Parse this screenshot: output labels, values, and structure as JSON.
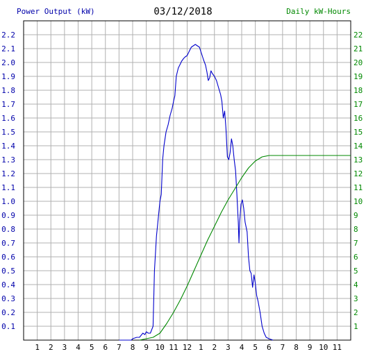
{
  "header": {
    "left_label": "Power Output (kW)",
    "date": "03/12/2018",
    "right_label": "Daily kW-Hours"
  },
  "chart_data": {
    "type": "line",
    "title": "03/12/2018",
    "grid": true,
    "legend": "none",
    "x_ticks": [
      "1",
      "2",
      "3",
      "4",
      "5",
      "6",
      "7",
      "8",
      "9",
      "10",
      "11",
      "12",
      "1",
      "2",
      "3",
      "4",
      "5",
      "6",
      "7",
      "8",
      "9",
      "10",
      "11"
    ],
    "x_range": [
      0,
      24
    ],
    "y_left": {
      "label": "Power Output (kW)",
      "range": [
        0,
        2.3
      ],
      "ticks": [
        "0.1",
        "0.2",
        "0.3",
        "0.4",
        "0.5",
        "0.6",
        "0.7",
        "0.8",
        "0.9",
        "1.0",
        "1.1",
        "1.2",
        "1.3",
        "1.4",
        "1.5",
        "1.6",
        "1.7",
        "1.8",
        "1.9",
        "2.0",
        "2.1",
        "2.2"
      ]
    },
    "y_right": {
      "label": "Daily kW-Hours",
      "range": [
        0,
        23
      ],
      "ticks": [
        "1",
        "2",
        "3",
        "4",
        "5",
        "6",
        "7",
        "8",
        "9",
        "10",
        "11",
        "12",
        "13",
        "14",
        "15",
        "16",
        "17",
        "18",
        "19",
        "20",
        "21",
        "22"
      ]
    },
    "colors": {
      "power": "#0000cc",
      "energy": "#008800",
      "grid": "#b0b0b0",
      "left_axis": "#0000aa",
      "right_axis": "#008800"
    },
    "series": [
      {
        "name": "Power Output (kW)",
        "axis": "left",
        "points": [
          [
            7.0,
            0
          ],
          [
            7.9,
            0
          ],
          [
            8.0,
            0.01
          ],
          [
            8.3,
            0.02
          ],
          [
            8.5,
            0.02
          ],
          [
            8.75,
            0.05
          ],
          [
            8.9,
            0.04
          ],
          [
            9.0,
            0.06
          ],
          [
            9.15,
            0.05
          ],
          [
            9.3,
            0.05
          ],
          [
            9.5,
            0.1
          ],
          [
            9.6,
            0.5
          ],
          [
            9.75,
            0.75
          ],
          [
            9.9,
            0.9
          ],
          [
            10.0,
            1.0
          ],
          [
            10.1,
            1.05
          ],
          [
            10.2,
            1.3
          ],
          [
            10.3,
            1.4
          ],
          [
            10.45,
            1.5
          ],
          [
            10.6,
            1.55
          ],
          [
            10.75,
            1.62
          ],
          [
            10.9,
            1.67
          ],
          [
            11.0,
            1.72
          ],
          [
            11.1,
            1.76
          ],
          [
            11.2,
            1.9
          ],
          [
            11.35,
            1.96
          ],
          [
            11.5,
            1.99
          ],
          [
            11.6,
            2.01
          ],
          [
            11.75,
            2.03
          ],
          [
            11.85,
            2.04
          ],
          [
            12.0,
            2.05
          ],
          [
            12.15,
            2.08
          ],
          [
            12.3,
            2.11
          ],
          [
            12.45,
            2.12
          ],
          [
            12.6,
            2.13
          ],
          [
            12.75,
            2.12
          ],
          [
            12.9,
            2.11
          ],
          [
            13.0,
            2.08
          ],
          [
            13.1,
            2.05
          ],
          [
            13.2,
            2.02
          ],
          [
            13.35,
            1.98
          ],
          [
            13.45,
            1.93
          ],
          [
            13.55,
            1.87
          ],
          [
            13.65,
            1.89
          ],
          [
            13.75,
            1.94
          ],
          [
            13.85,
            1.92
          ],
          [
            14.0,
            1.9
          ],
          [
            14.15,
            1.87
          ],
          [
            14.3,
            1.82
          ],
          [
            14.45,
            1.77
          ],
          [
            14.55,
            1.72
          ],
          [
            14.65,
            1.6
          ],
          [
            14.75,
            1.65
          ],
          [
            14.85,
            1.52
          ],
          [
            14.95,
            1.32
          ],
          [
            15.05,
            1.3
          ],
          [
            15.15,
            1.35
          ],
          [
            15.25,
            1.45
          ],
          [
            15.35,
            1.4
          ],
          [
            15.45,
            1.3
          ],
          [
            15.55,
            1.22
          ],
          [
            15.65,
            1.05
          ],
          [
            15.7,
            0.95
          ],
          [
            15.75,
            0.85
          ],
          [
            15.8,
            0.7
          ],
          [
            15.85,
            0.85
          ],
          [
            15.95,
            0.98
          ],
          [
            16.05,
            1.01
          ],
          [
            16.15,
            0.95
          ],
          [
            16.25,
            0.85
          ],
          [
            16.4,
            0.78
          ],
          [
            16.5,
            0.6
          ],
          [
            16.6,
            0.5
          ],
          [
            16.7,
            0.48
          ],
          [
            16.8,
            0.38
          ],
          [
            16.9,
            0.47
          ],
          [
            17.0,
            0.41
          ],
          [
            17.1,
            0.32
          ],
          [
            17.2,
            0.28
          ],
          [
            17.35,
            0.2
          ],
          [
            17.5,
            0.1
          ],
          [
            17.65,
            0.05
          ],
          [
            17.8,
            0.02
          ],
          [
            18.0,
            0.01
          ],
          [
            18.3,
            0.0
          ]
        ]
      },
      {
        "name": "Daily kW-Hours",
        "axis": "right",
        "points": [
          [
            8.5,
            0
          ],
          [
            9.0,
            0.1
          ],
          [
            9.5,
            0.2
          ],
          [
            10.0,
            0.5
          ],
          [
            10.5,
            1.2
          ],
          [
            11.0,
            2.0
          ],
          [
            11.5,
            2.9
          ],
          [
            12.0,
            3.9
          ],
          [
            12.5,
            5.0
          ],
          [
            13.0,
            6.1
          ],
          [
            13.5,
            7.2
          ],
          [
            14.0,
            8.2
          ],
          [
            14.5,
            9.2
          ],
          [
            15.0,
            10.1
          ],
          [
            15.5,
            10.9
          ],
          [
            16.0,
            11.7
          ],
          [
            16.5,
            12.4
          ],
          [
            17.0,
            12.9
          ],
          [
            17.5,
            13.2
          ],
          [
            18.0,
            13.3
          ],
          [
            19.0,
            13.3
          ],
          [
            20.0,
            13.3
          ],
          [
            21.0,
            13.3
          ],
          [
            22.0,
            13.3
          ],
          [
            23.0,
            13.3
          ],
          [
            24.0,
            13.3
          ]
        ]
      }
    ]
  }
}
